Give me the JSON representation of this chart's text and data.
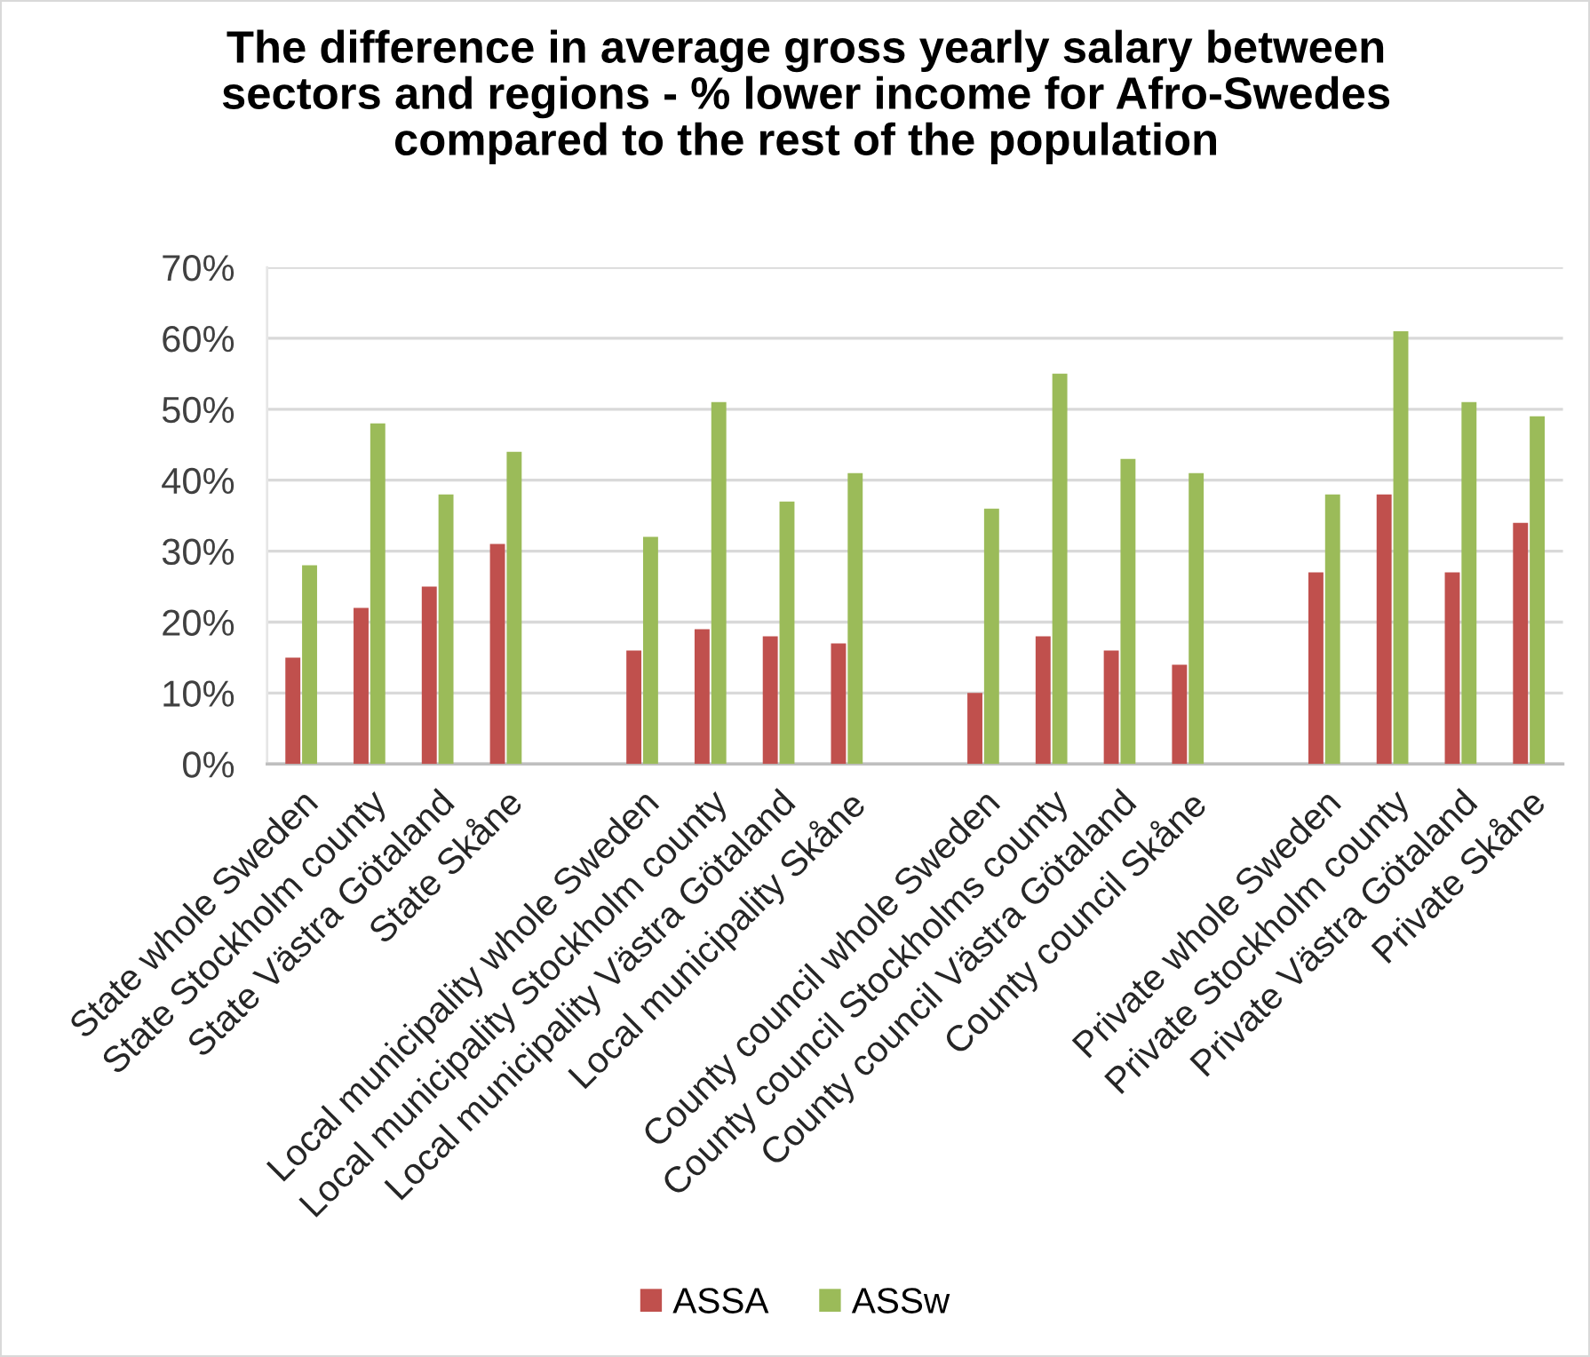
{
  "chart_data": {
    "type": "bar",
    "title": "The difference in average gross yearly salary between\nsectors and regions - % lower income for Afro-Swedes\ncompared to the rest of the population",
    "categories": [
      "State whole Sweden",
      "State Stockholm county",
      "State Västra Götaland",
      "State Skåne",
      null,
      "Local municipality whole Sweden",
      "Local municipality Stockholm county",
      "Local municipality Västra Götaland",
      "Local municipality Skåne",
      null,
      "County council whole Sweden",
      "County council Stockholms county",
      "County council Västra Götaland",
      "County council Skåne",
      null,
      "Private whole Sweden",
      "Private Stockholm county",
      "Private Västra Götaland",
      "Private Skåne"
    ],
    "series": [
      {
        "name": "ASSA",
        "color": "#c0504d",
        "values": [
          15,
          22,
          25,
          31,
          null,
          16,
          19,
          18,
          17,
          null,
          10,
          18,
          16,
          14,
          null,
          27,
          38,
          27,
          34
        ]
      },
      {
        "name": "ASSw",
        "color": "#9bbb59",
        "values": [
          28,
          48,
          38,
          44,
          null,
          32,
          51,
          37,
          41,
          null,
          36,
          55,
          43,
          41,
          null,
          38,
          61,
          51,
          49
        ]
      }
    ],
    "ylim": [
      0,
      70
    ],
    "yticks": [
      {
        "value": 0,
        "label": "0%"
      },
      {
        "value": 10,
        "label": "10%"
      },
      {
        "value": 20,
        "label": "20%"
      },
      {
        "value": 30,
        "label": "30%"
      },
      {
        "value": 40,
        "label": "40%"
      },
      {
        "value": 50,
        "label": "50%"
      },
      {
        "value": 60,
        "label": "60%"
      },
      {
        "value": 70,
        "label": "70%"
      }
    ],
    "grid": "y",
    "legend": "bottom"
  }
}
